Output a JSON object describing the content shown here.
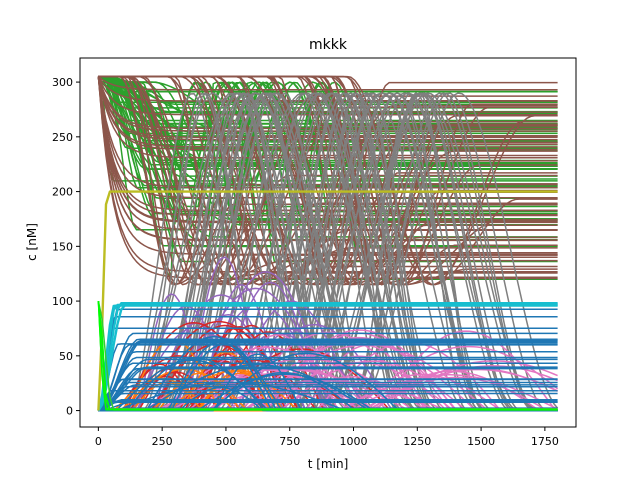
{
  "chart_data": {
    "type": "line",
    "title": "mkkk",
    "xlabel": "t [min]",
    "ylabel": "c [nM]",
    "xlim": [
      -72,
      1872
    ],
    "ylim": [
      -15,
      322
    ],
    "xticks": [
      0,
      250,
      500,
      750,
      1000,
      1250,
      1500,
      1750
    ],
    "yticks": [
      0,
      50,
      100,
      150,
      200,
      250,
      300
    ],
    "grid": false,
    "legend": "none",
    "t_max": 1800,
    "colors": {
      "blue": "#1f77b4",
      "orange": "#ff7f0e",
      "green": "#2ca02c",
      "red": "#d62728",
      "purple": "#9467bd",
      "brown": "#8c564b",
      "pink": "#e377c2",
      "gray": "#7f7f7f",
      "olive": "#bcbd22",
      "cyan": "#17becf",
      "lime": "#32cd32",
      "bright_green": "#00ff00"
    },
    "families": [
      {
        "color": "green",
        "count": 30,
        "kind": "rise",
        "start": 305,
        "end_min": 205,
        "end_max": 300,
        "t0_min": 0,
        "t0_max": 40,
        "dur_min": 40,
        "dur_max": 400
      },
      {
        "color": "green",
        "count": 28,
        "kind": "wave",
        "start": 300,
        "end_min": 115,
        "end_max": 265,
        "t0_min": 0,
        "t0_max": 250,
        "dur_min": 80,
        "dur_max": 500,
        "peak": 300,
        "peak_t_min": 250,
        "peak_t_max": 800
      },
      {
        "color": "brown",
        "count": 22,
        "kind": "plateau",
        "start": 305,
        "end_min": 118,
        "end_max": 300
      },
      {
        "color": "brown",
        "count": 55,
        "kind": "vshape",
        "start": 305,
        "end_min": 118,
        "end_max": 300,
        "t0_min": 80,
        "t0_max": 1000,
        "dur_min": 150,
        "dur_max": 420,
        "valley": 115,
        "peak": 305
      },
      {
        "color": "gray",
        "count": 70,
        "kind": "arch",
        "start": 0,
        "t0_min": 80,
        "t0_max": 1050,
        "peak": 290,
        "dur_min": 220,
        "dur_max": 450
      },
      {
        "color": "purple",
        "count": 18,
        "kind": "pulse",
        "start": 0,
        "t0_min": 80,
        "t0_max": 560,
        "peak_min": 40,
        "peak_max": 150,
        "dur_min": 200,
        "dur_max": 700
      },
      {
        "color": "red",
        "count": 20,
        "kind": "pulse",
        "start": 0,
        "t0_min": 70,
        "t0_max": 460,
        "peak_min": 30,
        "peak_max": 85,
        "dur_min": 250,
        "dur_max": 700
      },
      {
        "color": "pink",
        "count": 35,
        "kind": "pulse",
        "start": 0,
        "t0_min": 60,
        "t0_max": 1100,
        "peak_min": 20,
        "peak_max": 75,
        "dur_min": 450,
        "dur_max": 1000
      },
      {
        "color": "orange",
        "count": 10,
        "kind": "pulse",
        "start": 0,
        "t0_min": 40,
        "t0_max": 400,
        "peak_min": 20,
        "peak_max": 85,
        "dur_min": 150,
        "dur_max": 550
      },
      {
        "color": "blue",
        "count": 30,
        "kind": "flat",
        "start": 0,
        "end_min": 2,
        "end_max": 98,
        "t0_min": 40,
        "t0_max": 200
      },
      {
        "color": "blue",
        "count": 12,
        "kind": "pulse",
        "start": 0,
        "t0_min": 60,
        "t0_max": 500,
        "peak_min": 20,
        "peak_max": 70,
        "dur_min": 300,
        "dur_max": 900
      },
      {
        "color": "cyan",
        "count": 4,
        "kind": "flat",
        "start": 0,
        "end_min": 95,
        "end_max": 100,
        "t0_min": 40,
        "t0_max": 110
      },
      {
        "color": "olive",
        "count": 1,
        "kind": "flat",
        "start": 0,
        "end_min": 200,
        "end_max": 200,
        "t0_min": 30,
        "t0_max": 60
      },
      {
        "color": "lime",
        "count": 4,
        "kind": "flat",
        "start": 100,
        "end_min": 0,
        "end_max": 2,
        "t0_min": 10,
        "t0_max": 60
      },
      {
        "color": "bright_green",
        "count": 2,
        "kind": "flat",
        "start": 100,
        "end_min": 0,
        "end_max": 1,
        "t0_min": 10,
        "t0_max": 40
      }
    ]
  }
}
